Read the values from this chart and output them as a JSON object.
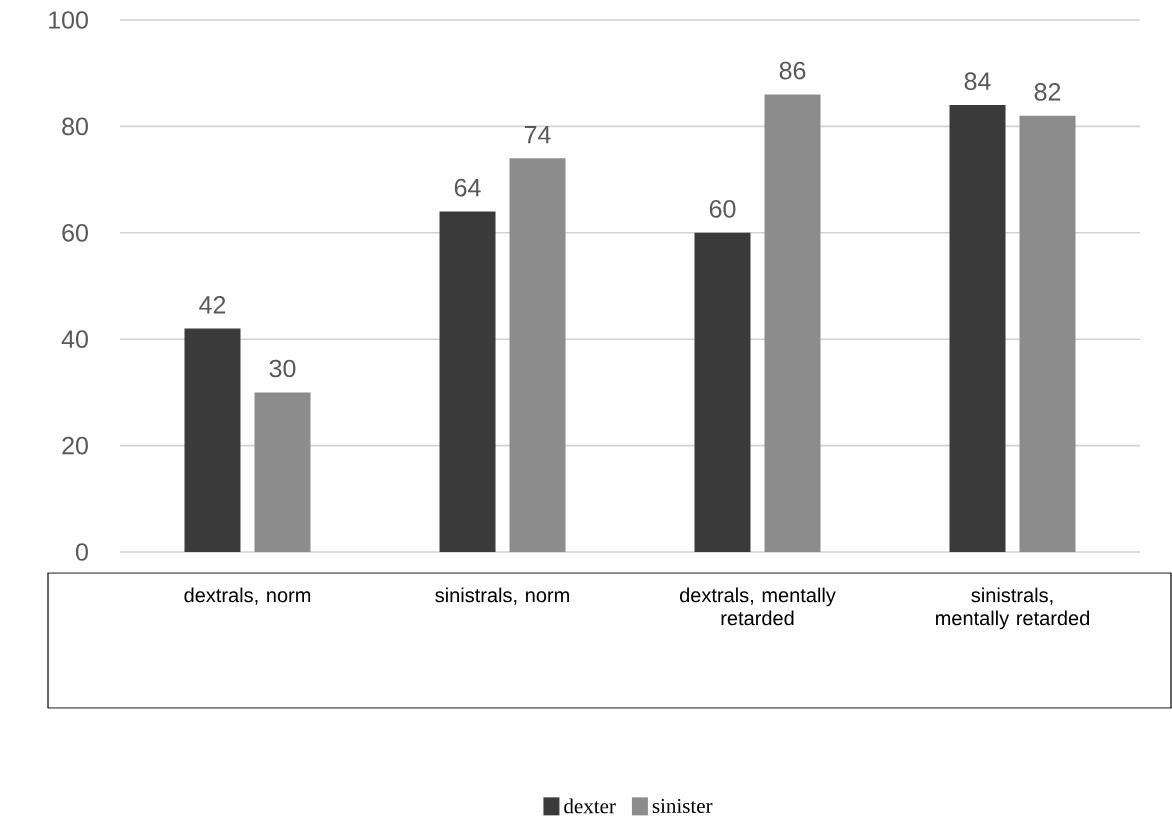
{
  "chart_data": {
    "type": "bar",
    "categories": [
      "dextrals, norm",
      "sinistrals, norm",
      "dextrals, mentally retarded",
      "sinistrals, mentally retarded"
    ],
    "series": [
      {
        "name": "dexter",
        "color": "#3a3a3a",
        "values": [
          42,
          64,
          60,
          84
        ]
      },
      {
        "name": "sinister",
        "color": "#8c8c8c",
        "values": [
          30,
          74,
          86,
          82
        ]
      }
    ],
    "ylim": [
      0,
      100
    ],
    "yticks": [
      0,
      20,
      40,
      60,
      80,
      100
    ],
    "grid": "y",
    "legend": "bottom",
    "data_labels": true
  }
}
